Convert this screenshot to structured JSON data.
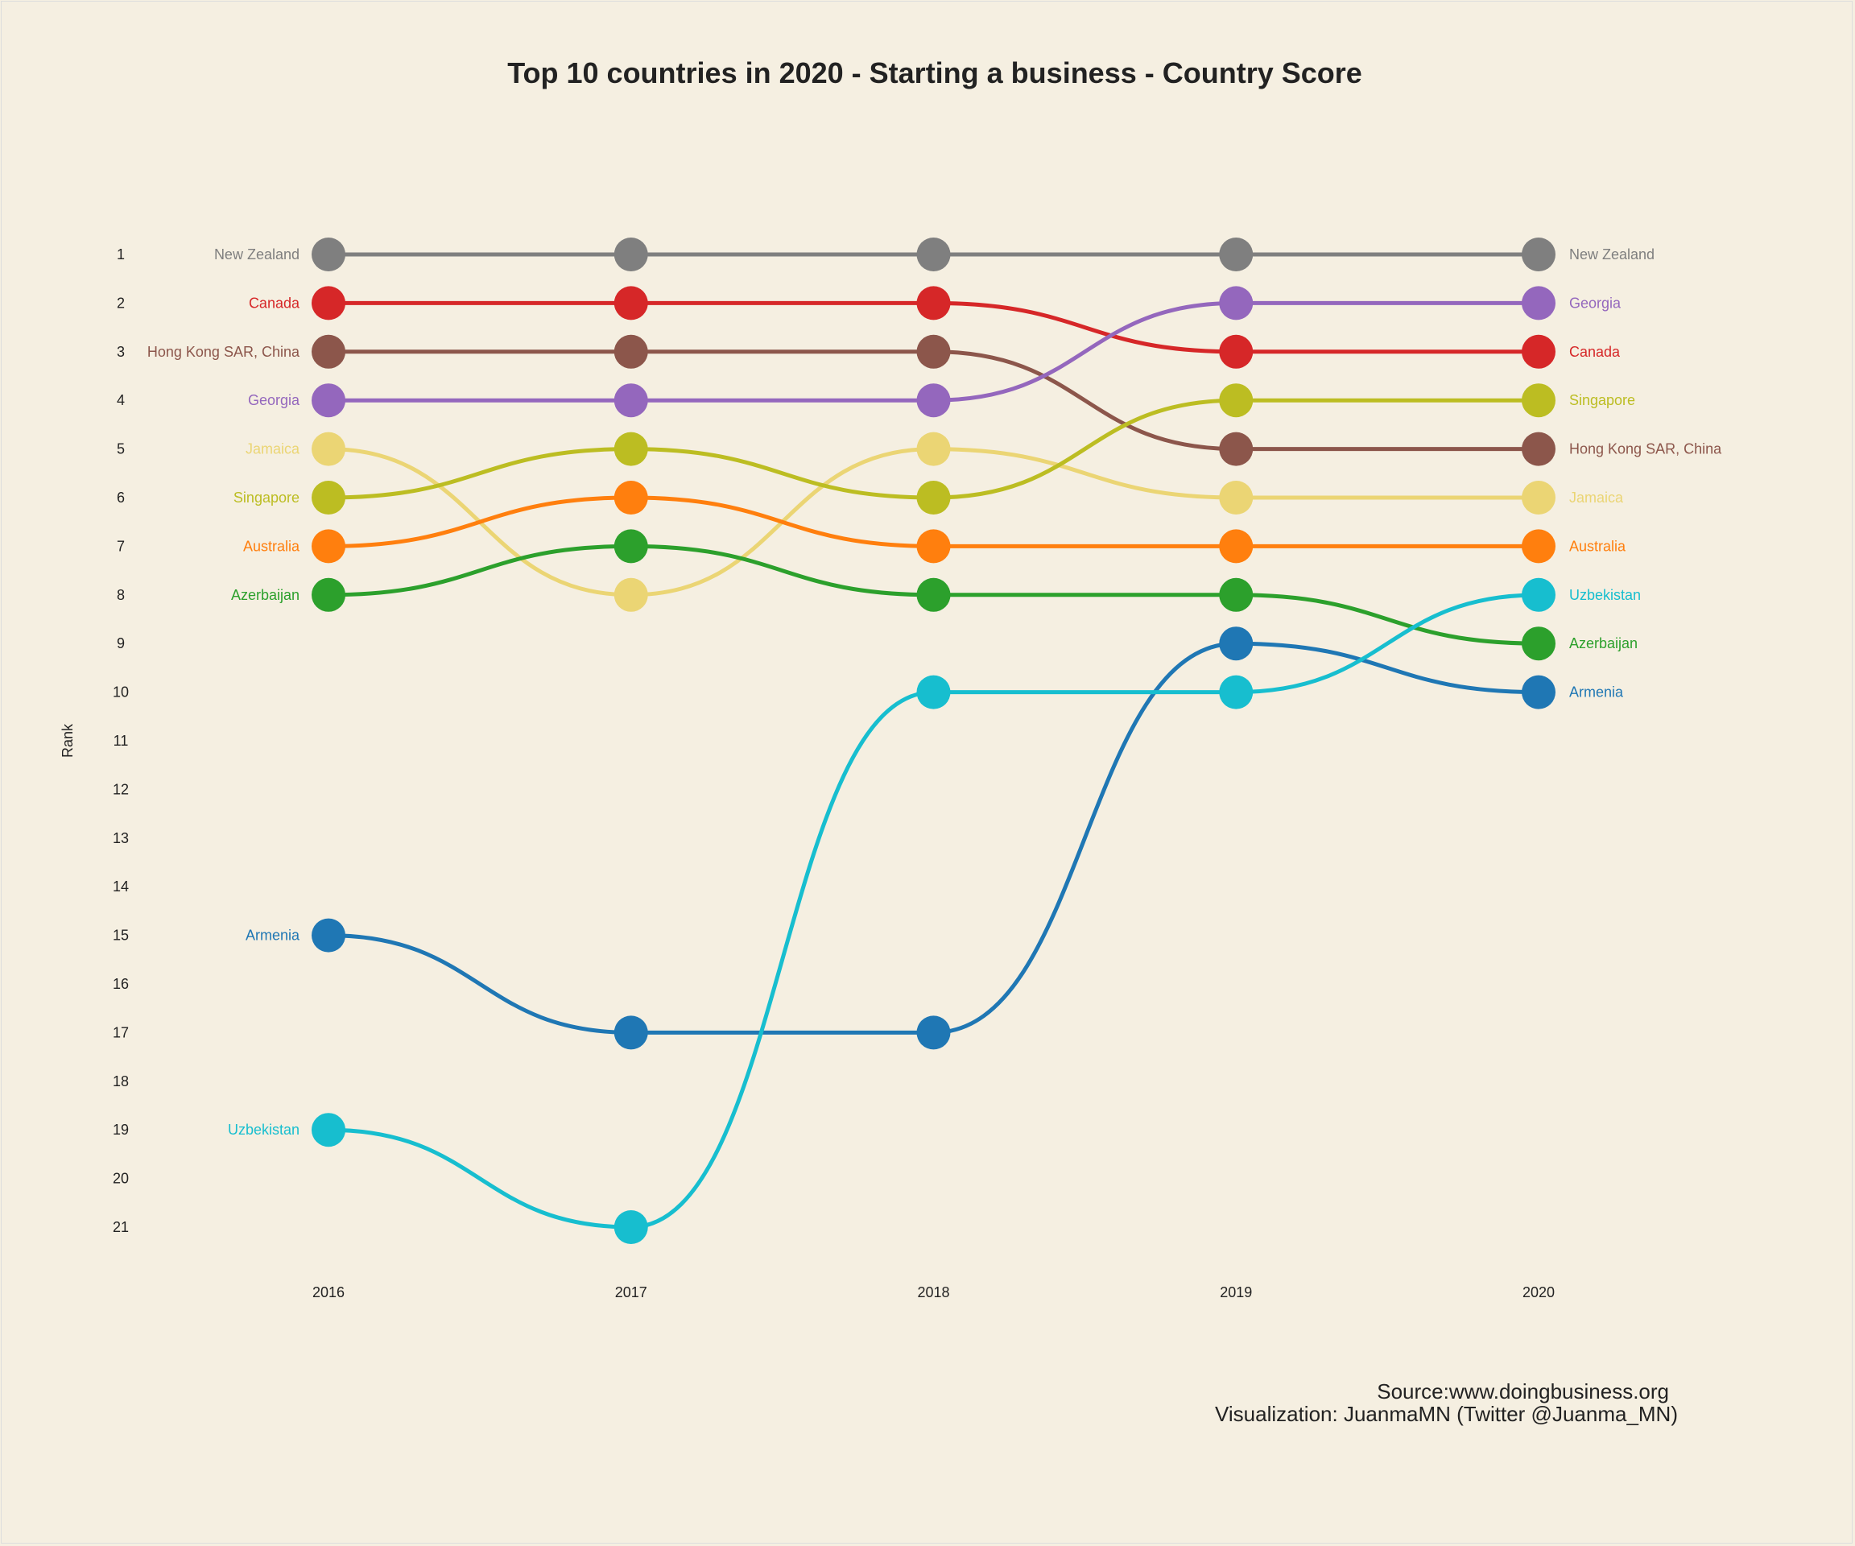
{
  "chart_data": {
    "type": "line",
    "subtype": "bump",
    "title": "Top 10 countries in 2020 - Starting a business - Country Score",
    "xlabel": "",
    "ylabel": "Rank",
    "x": [
      "2016",
      "2017",
      "2018",
      "2019",
      "2020"
    ],
    "yticks": [
      1,
      2,
      3,
      4,
      5,
      6,
      7,
      8,
      9,
      10,
      11,
      12,
      13,
      14,
      15,
      16,
      17,
      18,
      19,
      20,
      21
    ],
    "ylim": [
      1,
      21
    ],
    "y_reversed": true,
    "grid": false,
    "legend": "none (direct labels at both ends)",
    "series": [
      {
        "name": "New Zealand",
        "color": "#7f7f7f",
        "values": [
          1,
          1,
          1,
          1,
          1
        ]
      },
      {
        "name": "Canada",
        "color": "#d62728",
        "values": [
          2,
          2,
          2,
          3,
          3
        ]
      },
      {
        "name": "Hong Kong SAR, China",
        "color": "#8c564b",
        "values": [
          3,
          3,
          3,
          5,
          5
        ]
      },
      {
        "name": "Georgia",
        "color": "#9467bd",
        "values": [
          4,
          4,
          4,
          2,
          2
        ]
      },
      {
        "name": "Jamaica",
        "color": "#ebd574",
        "values": [
          5,
          8,
          5,
          6,
          6
        ]
      },
      {
        "name": "Singapore",
        "color": "#bcbd22",
        "values": [
          6,
          5,
          6,
          4,
          4
        ]
      },
      {
        "name": "Australia",
        "color": "#ff7f0e",
        "values": [
          7,
          6,
          7,
          7,
          7
        ]
      },
      {
        "name": "Azerbaijan",
        "color": "#2ca02c",
        "values": [
          8,
          7,
          8,
          8,
          9
        ]
      },
      {
        "name": "Armenia",
        "color": "#1f77b4",
        "values": [
          15,
          17,
          17,
          9,
          10
        ]
      },
      {
        "name": "Uzbekistan",
        "color": "#17becf",
        "values": [
          19,
          21,
          10,
          10,
          8
        ]
      }
    ],
    "caption": [
      "Source:www.doingbusiness.org",
      "Visualization: JuanmaMN (Twitter @Juanma_MN)"
    ]
  }
}
